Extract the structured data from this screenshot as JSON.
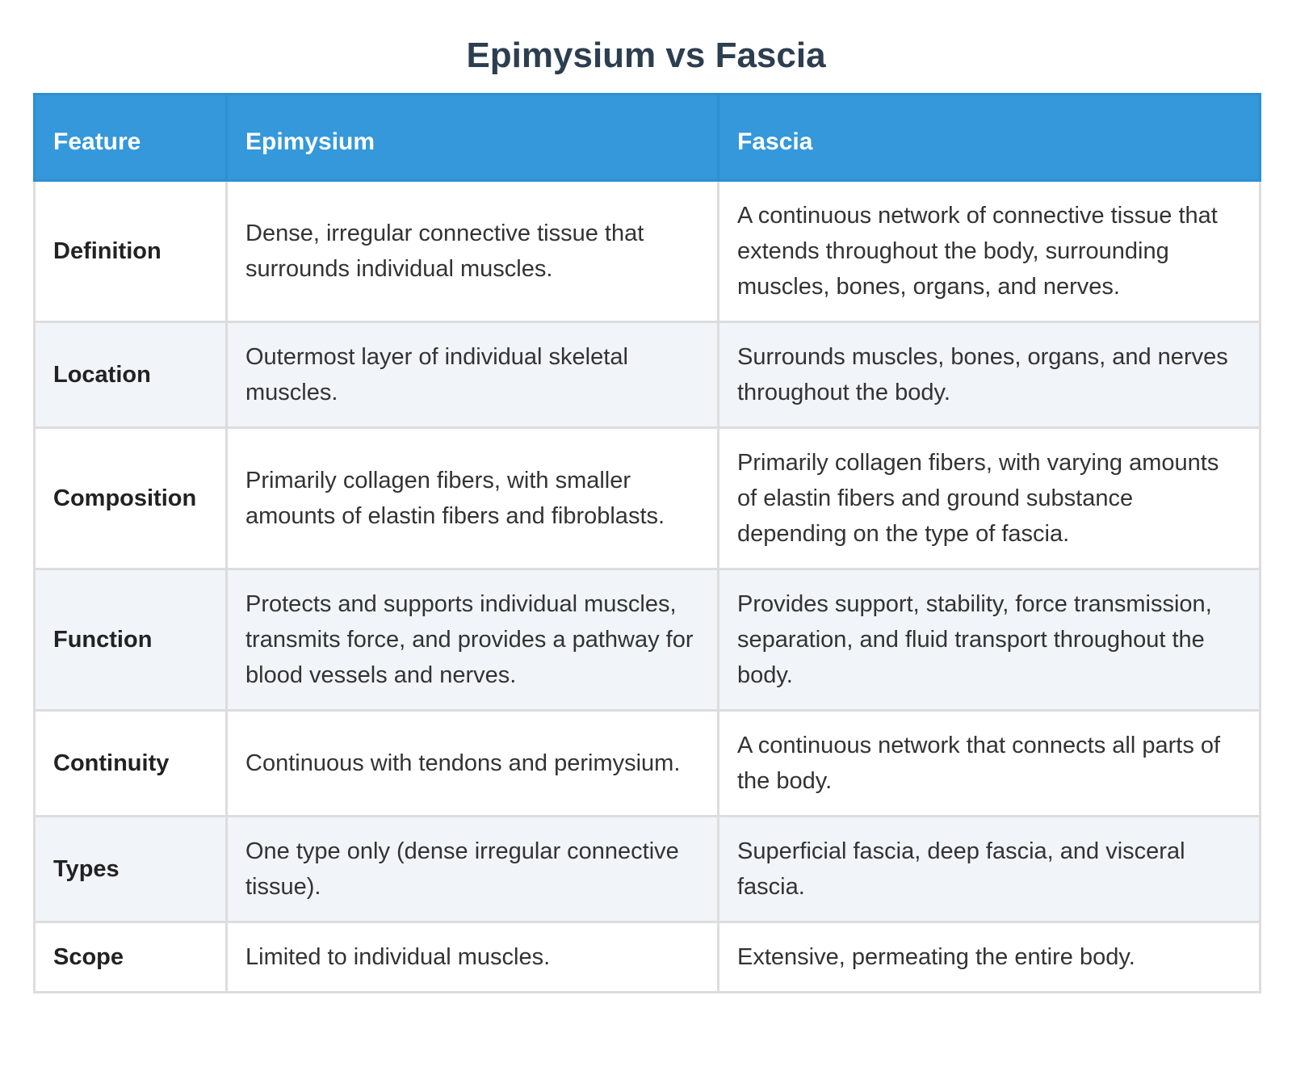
{
  "header": {
    "title": "Epimysium vs Fascia"
  },
  "table": {
    "columns": [
      "Feature",
      "Epimysium",
      "Fascia"
    ],
    "rows": [
      [
        "Definition",
        "Dense, irregular connective tissue that surrounds individual muscles.",
        "A continuous network of connective tissue that extends throughout the body, surrounding muscles, bones, organs, and nerves."
      ],
      [
        "Location",
        "Outermost layer of individual skeletal muscles.",
        "Surrounds muscles, bones, organs, and nerves throughout the body."
      ],
      [
        "Composition",
        "Primarily collagen fibers, with smaller amounts of elastin fibers and fibroblasts.",
        "Primarily collagen fibers, with varying amounts of elastin fibers and ground substance depending on the type of fascia."
      ],
      [
        "Function",
        "Protects and supports individual muscles, transmits force, and provides a pathway for blood vessels and nerves.",
        "Provides support, stability, force transmission, separation, and fluid transport throughout the body."
      ],
      [
        "Continuity",
        "Continuous with tendons and perimysium.",
        "A continuous network that connects all parts of the body."
      ],
      [
        "Types",
        "One type only (dense irregular connective tissue).",
        "Superficial fascia, deep fascia, and visceral fascia."
      ],
      [
        "Scope",
        "Limited to individual muscles.",
        "Extensive, permeating the entire body."
      ]
    ]
  }
}
